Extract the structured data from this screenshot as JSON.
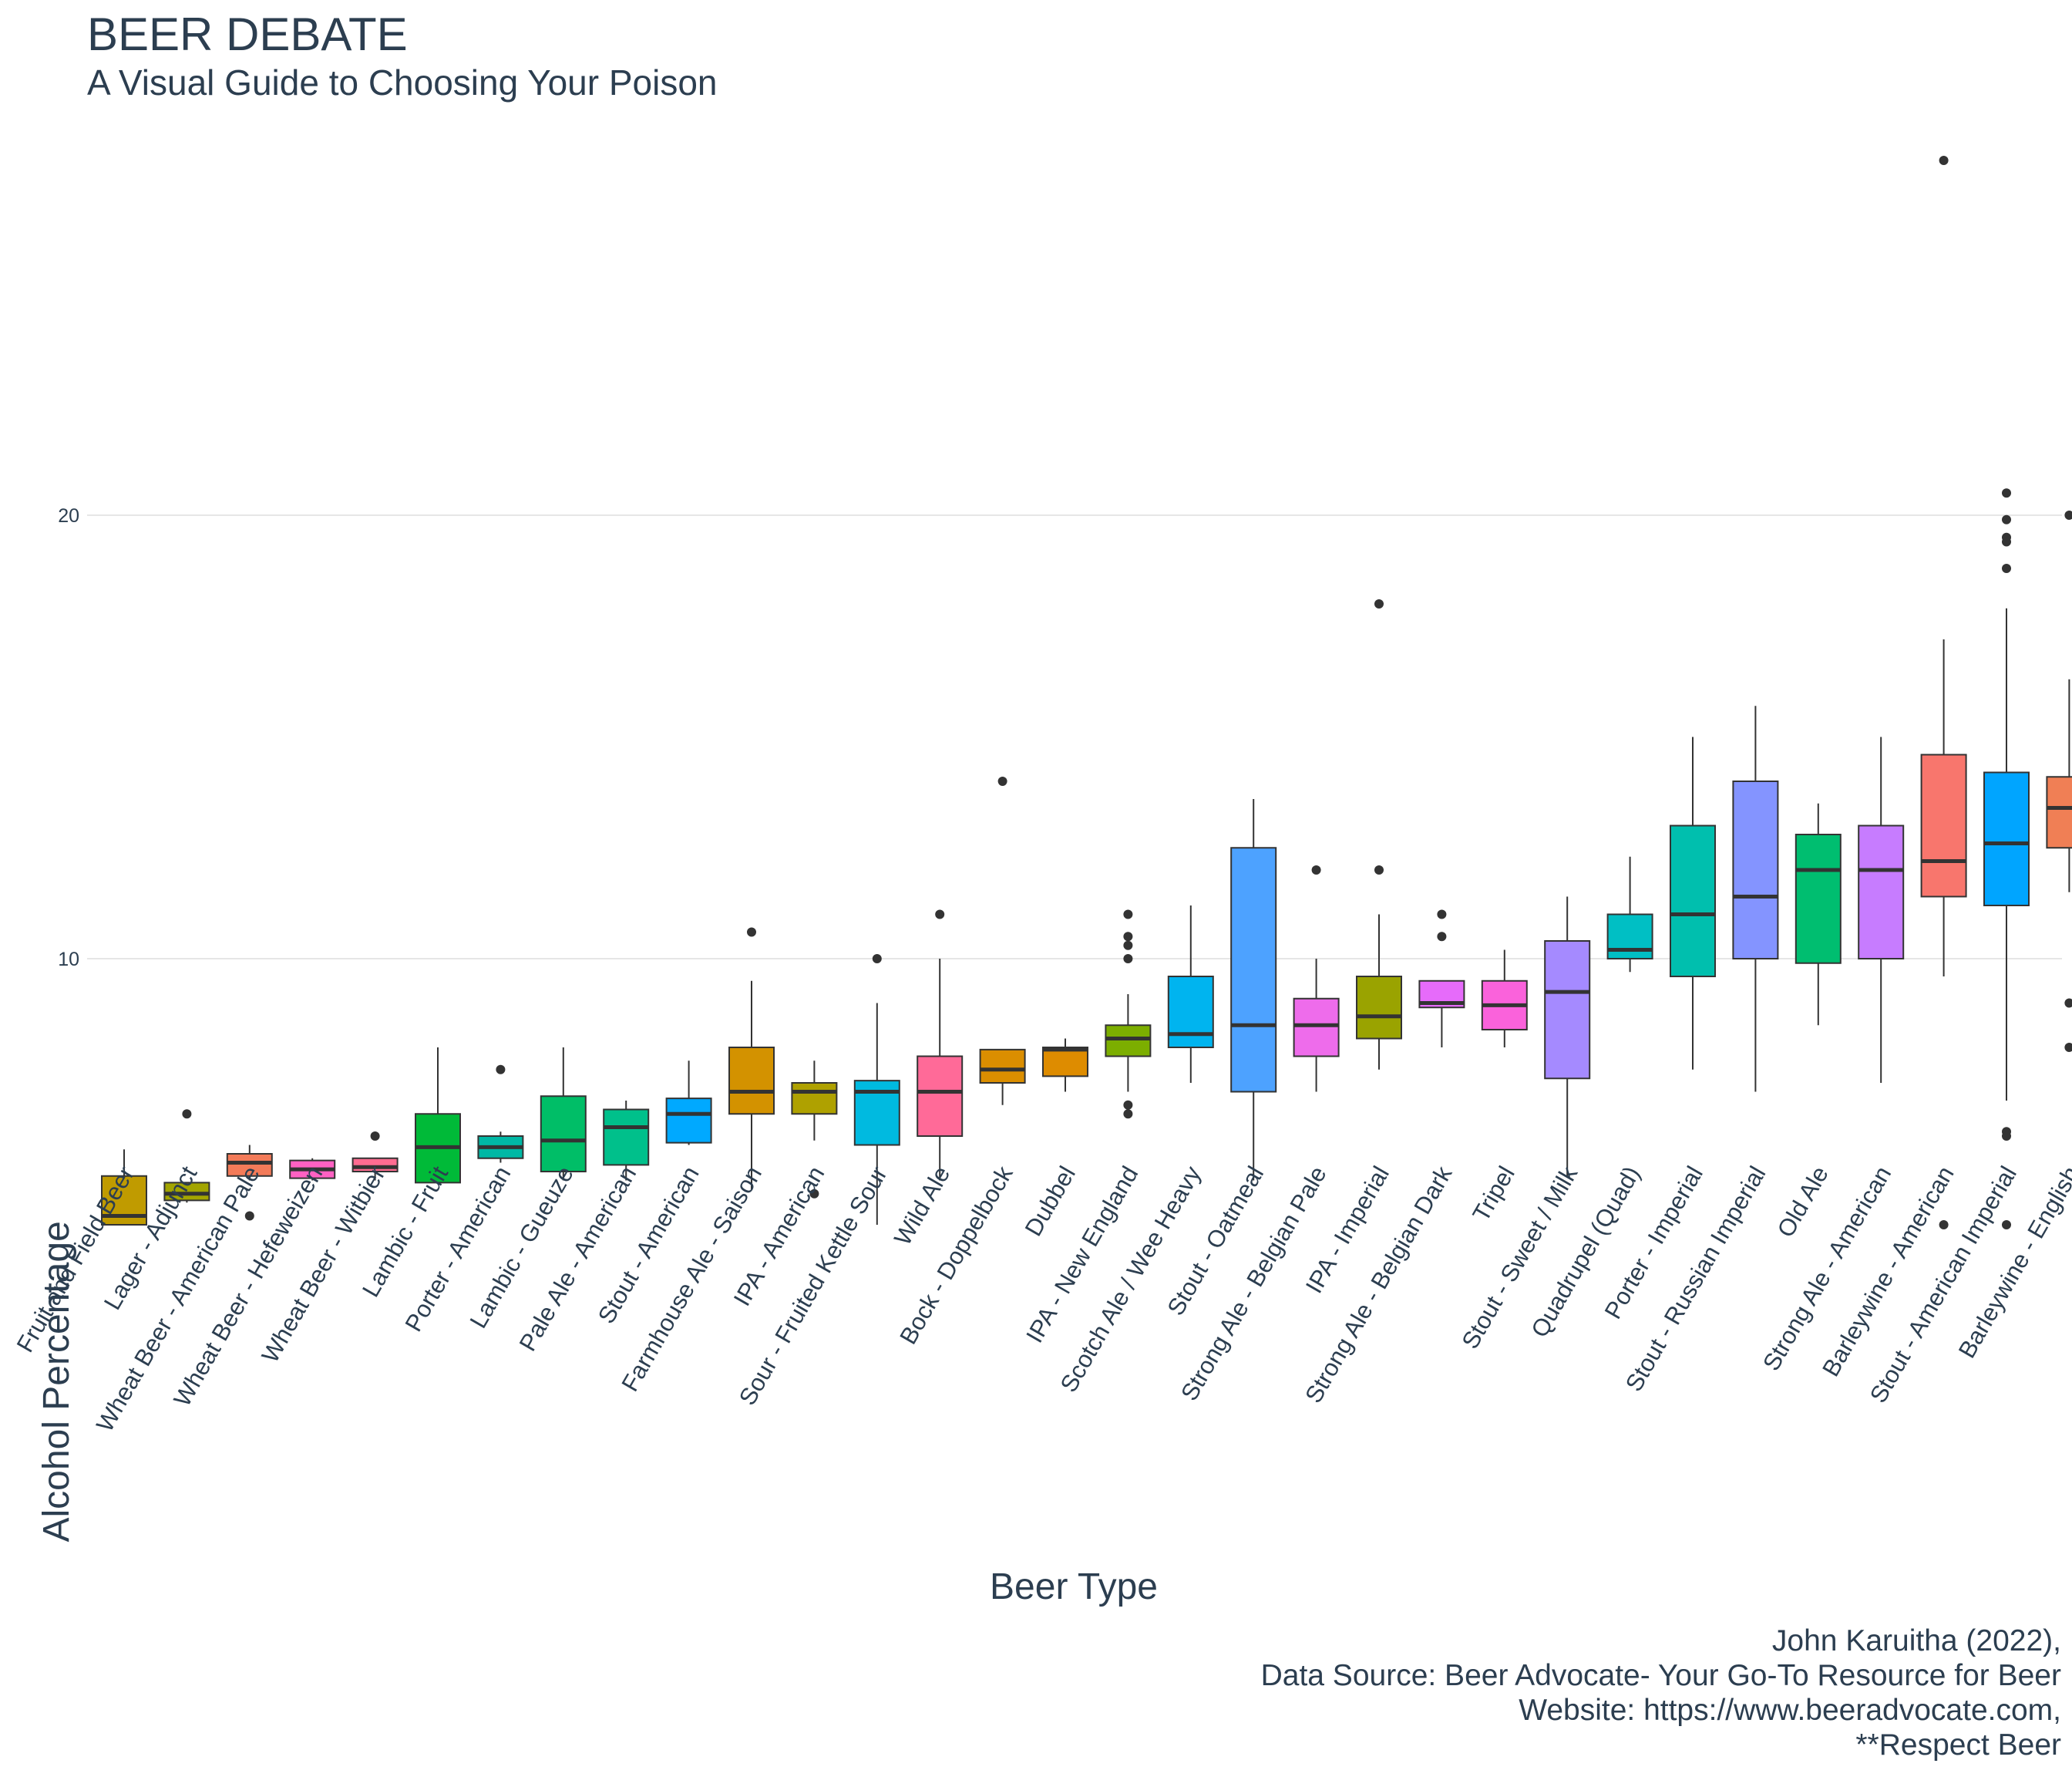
{
  "title": "BEER DEBATE",
  "subtitle": "A Visual Guide to Choosing Your Poison",
  "caption": [
    "John Karuitha (2022),",
    "Data Source: Beer Advocate- Your Go-To Resource for Beer",
    "Website: https://www.beeradvocate.com,",
    "**Respect Beer"
  ],
  "chart_data": {
    "type": "box",
    "xlabel": "Beer Type",
    "ylabel": "Alcohol Percentage",
    "yticks": [
      10,
      20
    ],
    "ylim": [
      -6.5,
      28.5
    ],
    "grid": true,
    "legend": "none",
    "categories": [
      "Fruit and Field Beer",
      "Lager - Adjunct",
      "Wheat Beer - American Pale",
      "Wheat Beer - Hefeweizen",
      "Wheat Beer - Witbier",
      "Lambic - Fruit",
      "Porter - American",
      "Lambic - Gueuze",
      "Pale Ale - American",
      "Stout - American",
      "Farmhouse Ale - Saison",
      "IPA - American",
      "Sour - Fruited Kettle Sour",
      "Wild Ale",
      "Bock - Doppelbock",
      "Dubbel",
      "IPA - New England",
      "Scotch Ale / Wee Heavy",
      "Stout - Oatmeal",
      "Strong Ale - Belgian Pale",
      "IPA - Imperial",
      "Strong Ale - Belgian Dark",
      "Tripel",
      "Stout - Sweet / Milk",
      "Quadrupel (Quad)",
      "Porter - Imperial",
      "Stout - Russian Imperial",
      "Old Ale",
      "Strong Ale - American",
      "Barleywine - American",
      "Stout - American Imperial",
      "Barleywine - English"
    ],
    "boxes": [
      {
        "q1": 4.0,
        "median": 4.2,
        "q3": 5.1,
        "whisker_low": 4.0,
        "whisker_high": 5.7,
        "outliers": [],
        "color": "#C09B00"
      },
      {
        "q1": 4.55,
        "median": 4.7,
        "q3": 4.95,
        "whisker_low": 4.5,
        "whisker_high": 4.95,
        "outliers": [
          6.5
        ],
        "color": "#A3A500"
      },
      {
        "q1": 5.1,
        "median": 5.4,
        "q3": 5.6,
        "whisker_low": 5.0,
        "whisker_high": 5.8,
        "outliers": [
          4.2
        ],
        "color": "#F37B59"
      },
      {
        "q1": 5.05,
        "median": 5.25,
        "q3": 5.45,
        "whisker_low": 5.0,
        "whisker_high": 5.5,
        "outliers": [],
        "color": "#FF61C3"
      },
      {
        "q1": 5.2,
        "median": 5.3,
        "q3": 5.5,
        "whisker_low": 5.0,
        "whisker_high": 5.5,
        "outliers": [
          6.0
        ],
        "color": "#FF6C91"
      },
      {
        "q1": 4.95,
        "median": 5.75,
        "q3": 6.5,
        "whisker_low": 4.95,
        "whisker_high": 8.0,
        "outliers": [],
        "color": "#00BA38"
      },
      {
        "q1": 5.5,
        "median": 5.75,
        "q3": 6.0,
        "whisker_low": 5.4,
        "whisker_high": 6.1,
        "outliers": [
          7.5
        ],
        "color": "#00B8A5"
      },
      {
        "q1": 5.2,
        "median": 5.9,
        "q3": 6.9,
        "whisker_low": 5.0,
        "whisker_high": 8.0,
        "outliers": [],
        "color": "#00BE67"
      },
      {
        "q1": 5.35,
        "median": 6.2,
        "q3": 6.6,
        "whisker_low": 5.0,
        "whisker_high": 6.8,
        "outliers": [],
        "color": "#00C08B"
      },
      {
        "q1": 5.85,
        "median": 6.5,
        "q3": 6.85,
        "whisker_low": 5.8,
        "whisker_high": 7.7,
        "outliers": [],
        "color": "#00A9FF"
      },
      {
        "q1": 6.5,
        "median": 7.0,
        "q3": 8.0,
        "whisker_low": 4.8,
        "whisker_high": 9.5,
        "outliers": [
          10.6
        ],
        "color": "#D39200"
      },
      {
        "q1": 6.5,
        "median": 7.0,
        "q3": 7.2,
        "whisker_low": 5.9,
        "whisker_high": 7.7,
        "outliers": [
          4.7
        ],
        "color": "#AFA100"
      },
      {
        "q1": 5.8,
        "median": 7.0,
        "q3": 7.25,
        "whisker_low": 4.0,
        "whisker_high": 9.0,
        "outliers": [
          10.0
        ],
        "color": "#00BAE0"
      },
      {
        "q1": 6.0,
        "median": 7.0,
        "q3": 7.8,
        "whisker_low": 5.0,
        "whisker_high": 10.0,
        "outliers": [
          11.0
        ],
        "color": "#FF6A98"
      },
      {
        "q1": 7.2,
        "median": 7.5,
        "q3": 7.95,
        "whisker_low": 6.7,
        "whisker_high": 7.95,
        "outliers": [
          14.0
        ],
        "color": "#DB8E00"
      },
      {
        "q1": 7.35,
        "median": 7.95,
        "q3": 8.0,
        "whisker_low": 7.0,
        "whisker_high": 8.2,
        "outliers": [],
        "color": "#DE8C00"
      },
      {
        "q1": 7.8,
        "median": 8.2,
        "q3": 8.5,
        "whisker_low": 7.0,
        "whisker_high": 9.2,
        "outliers": [
          11.0,
          10.5,
          10.3,
          10.0,
          6.7,
          6.5
        ],
        "color": "#7CAE00"
      },
      {
        "q1": 8.0,
        "median": 8.3,
        "q3": 9.6,
        "whisker_low": 7.2,
        "whisker_high": 11.2,
        "outliers": [],
        "color": "#00B4EF"
      },
      {
        "q1": 7.0,
        "median": 8.5,
        "q3": 12.5,
        "whisker_low": 5.0,
        "whisker_high": 13.6,
        "outliers": [],
        "color": "#4DA2FF"
      },
      {
        "q1": 7.8,
        "median": 8.5,
        "q3": 9.1,
        "whisker_low": 7.0,
        "whisker_high": 10.0,
        "outliers": [
          12.0
        ],
        "color": "#EE6CEB"
      },
      {
        "q1": 8.2,
        "median": 8.7,
        "q3": 9.6,
        "whisker_low": 7.5,
        "whisker_high": 11.0,
        "outliers": [
          18.0,
          12.0
        ],
        "color": "#9AA300"
      },
      {
        "q1": 8.9,
        "median": 9.0,
        "q3": 9.5,
        "whisker_low": 8.0,
        "whisker_high": 9.5,
        "outliers": [
          11.0,
          10.5
        ],
        "color": "#E66BFA"
      },
      {
        "q1": 8.4,
        "median": 8.95,
        "q3": 9.5,
        "whisker_low": 8.0,
        "whisker_high": 10.2,
        "outliers": [],
        "color": "#FA62DB"
      },
      {
        "q1": 7.3,
        "median": 9.25,
        "q3": 10.4,
        "whisker_low": 5.1,
        "whisker_high": 11.4,
        "outliers": [],
        "color": "#A58AFF"
      },
      {
        "q1": 10.0,
        "median": 10.2,
        "q3": 11.0,
        "whisker_low": 9.7,
        "whisker_high": 12.3,
        "outliers": [],
        "color": "#00BFC4"
      },
      {
        "q1": 9.6,
        "median": 11.0,
        "q3": 13.0,
        "whisker_low": 7.5,
        "whisker_high": 15.0,
        "outliers": [],
        "color": "#00BFAE"
      },
      {
        "q1": 10.0,
        "median": 11.4,
        "q3": 14.0,
        "whisker_low": 7.0,
        "whisker_high": 15.7,
        "outliers": [],
        "color": "#8494FF"
      },
      {
        "q1": 9.9,
        "median": 12.0,
        "q3": 12.8,
        "whisker_low": 8.5,
        "whisker_high": 13.5,
        "outliers": [],
        "color": "#00BE70"
      },
      {
        "q1": 10.0,
        "median": 12.0,
        "q3": 13.0,
        "whisker_low": 7.2,
        "whisker_high": 15.0,
        "outliers": [],
        "color": "#C77CFF"
      },
      {
        "q1": 11.4,
        "median": 12.2,
        "q3": 14.6,
        "whisker_low": 9.6,
        "whisker_high": 17.2,
        "outliers": [
          4.0,
          28.0
        ],
        "color": "#F8766D"
      },
      {
        "q1": 11.2,
        "median": 12.6,
        "q3": 14.2,
        "whisker_low": 6.8,
        "whisker_high": 17.9,
        "outliers": [
          20.5,
          19.9,
          19.5,
          19.4,
          18.8,
          6.1,
          6.0,
          4.0
        ],
        "color": "#00A5FF"
      },
      {
        "q1": 12.5,
        "median": 13.4,
        "q3": 14.1,
        "whisker_low": 11.5,
        "whisker_high": 16.3,
        "outliers": [
          20.0,
          9.0,
          8.0
        ],
        "color": "#F07F55"
      }
    ]
  }
}
